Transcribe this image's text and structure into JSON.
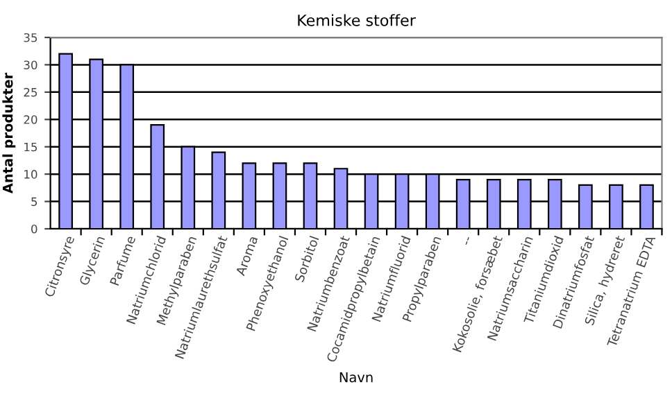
{
  "chart_data": {
    "type": "bar",
    "title": "Kemiske stoffer",
    "xlabel": "Navn",
    "ylabel": "Antal produkter",
    "categories": [
      "Citronsyre",
      "Glycerin",
      "Parfume",
      "Natriumchlorid",
      "Methylparaben",
      "Natriumlaurethsulfat",
      "Aroma",
      "Phenoxyethanol",
      "Sorbitol",
      "Natriumbenzoat",
      "Cocamidpropylbetain",
      "Natriumfluorid",
      "Propylparaben",
      "--",
      "Kokosolie, forsæbet",
      "Natriumsaccharin",
      "Titaniumdioxid",
      "Dinatriumfosfat",
      "Silica, hydreret",
      "Tetranatrium EDTA"
    ],
    "values": [
      32,
      31,
      30,
      19,
      15,
      14,
      12,
      12,
      12,
      11,
      10,
      10,
      10,
      9,
      9,
      9,
      9,
      8,
      8,
      8
    ],
    "color": "#9999ff",
    "ylim": [
      0,
      35
    ],
    "yticks": [
      0,
      5,
      10,
      15,
      20,
      25,
      30,
      35
    ],
    "grid": "y",
    "legend": false
  }
}
